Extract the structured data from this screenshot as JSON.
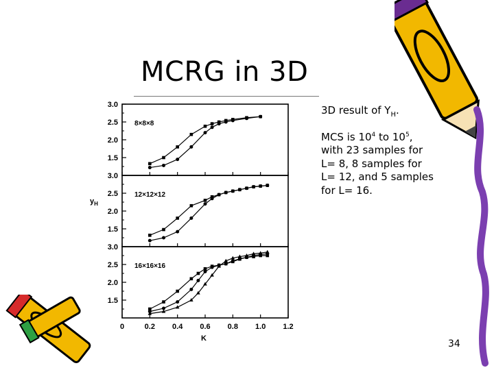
{
  "slide": {
    "title": "MCRG in 3D",
    "description_line1": "3D result of Y",
    "description_line1_sub": "H",
    "description_line1_end": ".",
    "description_p2_a": "MCS is 10",
    "description_p2_sup1": "4",
    "description_p2_b": " to 10",
    "description_p2_sup2": "5",
    "description_p2_c": ", with 23 samples for L= 8, 8 samples for L= 12, and 5 samples for L= 16.",
    "page_number": "34"
  },
  "chart_data": {
    "type": "scatter",
    "xlabel": "K",
    "ylabel": "y",
    "ylabel_sub": "H",
    "xticks": [
      "0",
      "0.2",
      "0.4",
      "0.6",
      "0.8",
      "1.0",
      "1.2"
    ],
    "xlim": [
      0,
      1.2
    ],
    "panels": [
      {
        "label": "8×8×8",
        "ylim": [
          1.0,
          3.0
        ],
        "yticks": [
          "3.0",
          "2.5",
          "2.0",
          "1.5"
        ],
        "series": [
          {
            "x": [
              0.2,
              0.3,
              0.4,
              0.5,
              0.6,
              0.65,
              0.7,
              0.75,
              0.8,
              0.9,
              1.0
            ],
            "y": [
              1.33,
              1.5,
              1.8,
              2.15,
              2.38,
              2.45,
              2.5,
              2.54,
              2.57,
              2.62,
              2.65
            ]
          },
          {
            "x": [
              0.2,
              0.3,
              0.4,
              0.5,
              0.6,
              0.65,
              0.7,
              0.75,
              0.8,
              0.9,
              1.0
            ],
            "y": [
              1.22,
              1.28,
              1.45,
              1.8,
              2.2,
              2.35,
              2.45,
              2.5,
              2.54,
              2.6,
              2.65
            ]
          }
        ]
      },
      {
        "label": "12×12×12",
        "ylim": [
          1.0,
          3.0
        ],
        "yticks": [
          "3.0",
          "2.5",
          "2.0",
          "1.5"
        ],
        "series": [
          {
            "x": [
              0.2,
              0.3,
              0.4,
              0.5,
              0.6,
              0.65,
              0.7,
              0.75,
              0.8,
              0.85,
              0.9,
              0.95,
              1.0,
              1.05
            ],
            "y": [
              1.32,
              1.48,
              1.8,
              2.15,
              2.3,
              2.4,
              2.46,
              2.52,
              2.56,
              2.6,
              2.64,
              2.68,
              2.7,
              2.72
            ]
          },
          {
            "x": [
              0.2,
              0.3,
              0.4,
              0.5,
              0.6,
              0.65,
              0.7,
              0.75,
              0.8,
              0.85,
              0.9,
              0.95,
              1.0,
              1.05
            ],
            "y": [
              1.17,
              1.25,
              1.42,
              1.8,
              2.2,
              2.35,
              2.46,
              2.52,
              2.56,
              2.6,
              2.64,
              2.68,
              2.7,
              2.72
            ]
          }
        ]
      },
      {
        "label": "16×16×16",
        "ylim": [
          1.0,
          3.0
        ],
        "yticks": [
          "3.0",
          "2.5",
          "2.0",
          "1.5"
        ],
        "series": [
          {
            "x": [
              0.2,
              0.3,
              0.4,
              0.5,
              0.55,
              0.6,
              0.65,
              0.7,
              0.75,
              0.8,
              0.85,
              0.9,
              0.95,
              1.0,
              1.05
            ],
            "y": [
              1.25,
              1.45,
              1.75,
              2.1,
              2.25,
              2.38,
              2.45,
              2.48,
              2.52,
              2.58,
              2.65,
              2.7,
              2.72,
              2.75,
              2.75
            ]
          },
          {
            "x": [
              0.2,
              0.3,
              0.4,
              0.5,
              0.55,
              0.6,
              0.65,
              0.7,
              0.75,
              0.8,
              0.85,
              0.9,
              0.95,
              1.0,
              1.05
            ],
            "y": [
              1.18,
              1.27,
              1.45,
              1.8,
              2.05,
              2.3,
              2.42,
              2.48,
              2.52,
              2.6,
              2.66,
              2.7,
              2.75,
              2.78,
              2.8
            ]
          },
          {
            "x": [
              0.2,
              0.3,
              0.4,
              0.5,
              0.55,
              0.6,
              0.65,
              0.7,
              0.75,
              0.8,
              0.85,
              0.9,
              0.95,
              1.0,
              1.05
            ],
            "y": [
              1.12,
              1.18,
              1.3,
              1.5,
              1.7,
              1.95,
              2.2,
              2.45,
              2.6,
              2.68,
              2.72,
              2.75,
              2.8,
              2.82,
              2.85
            ]
          }
        ]
      }
    ]
  }
}
